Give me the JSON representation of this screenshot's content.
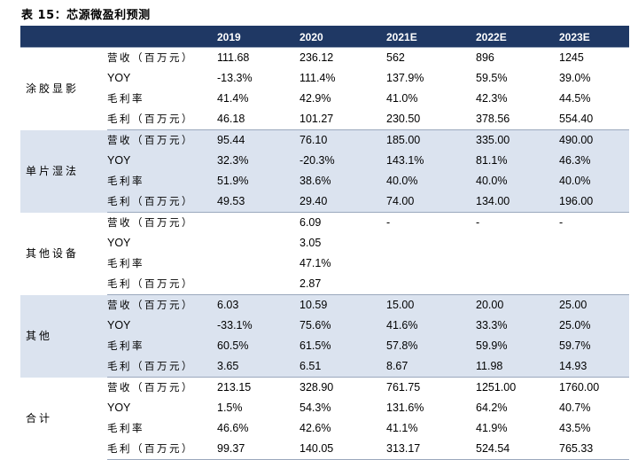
{
  "title": "表 15：芯源微盈利预测",
  "columns": [
    "",
    "",
    "2019",
    "2020",
    "2021E",
    "2022E",
    "2023E"
  ],
  "groups": [
    {
      "segment": "涂胶显影",
      "rows": [
        {
          "metric": "营收（百万元）",
          "values": [
            "111.68",
            "236.12",
            "562",
            "896",
            "1245"
          ]
        },
        {
          "metric": "YOY",
          "values": [
            "-13.3%",
            "111.4%",
            "137.9%",
            "59.5%",
            "39.0%"
          ]
        },
        {
          "metric": "毛利率",
          "values": [
            "41.4%",
            "42.9%",
            "41.0%",
            "42.3%",
            "44.5%"
          ]
        },
        {
          "metric": "毛利（百万元）",
          "values": [
            "46.18",
            "101.27",
            "230.50",
            "378.56",
            "554.40"
          ]
        }
      ]
    },
    {
      "segment": "单片湿法",
      "rows": [
        {
          "metric": "营收（百万元）",
          "values": [
            "95.44",
            "76.10",
            "185.00",
            "335.00",
            "490.00"
          ]
        },
        {
          "metric": "YOY",
          "values": [
            "32.3%",
            "-20.3%",
            "143.1%",
            "81.1%",
            "46.3%"
          ]
        },
        {
          "metric": "毛利率",
          "values": [
            "51.9%",
            "38.6%",
            "40.0%",
            "40.0%",
            "40.0%"
          ]
        },
        {
          "metric": "毛利（百万元）",
          "values": [
            "49.53",
            "29.40",
            "74.00",
            "134.00",
            "196.00"
          ]
        }
      ]
    },
    {
      "segment": "其他设备",
      "rows": [
        {
          "metric": "营收（百万元）",
          "values": [
            "",
            "6.09",
            "-",
            "-",
            "-"
          ]
        },
        {
          "metric": "YOY",
          "values": [
            "",
            "3.05",
            "",
            "",
            ""
          ]
        },
        {
          "metric": "毛利率",
          "values": [
            "",
            "47.1%",
            "",
            "",
            ""
          ]
        },
        {
          "metric": "毛利（百万元）",
          "values": [
            "",
            "2.87",
            "",
            "",
            ""
          ]
        }
      ]
    },
    {
      "segment": "其他",
      "rows": [
        {
          "metric": "营收（百万元）",
          "values": [
            "6.03",
            "10.59",
            "15.00",
            "20.00",
            "25.00"
          ]
        },
        {
          "metric": "YOY",
          "values": [
            "-33.1%",
            "75.6%",
            "41.6%",
            "33.3%",
            "25.0%"
          ]
        },
        {
          "metric": "毛利率",
          "values": [
            "60.5%",
            "61.5%",
            "57.8%",
            "59.9%",
            "59.7%"
          ]
        },
        {
          "metric": "毛利（百万元）",
          "values": [
            "3.65",
            "6.51",
            "8.67",
            "11.98",
            "14.93"
          ]
        }
      ]
    },
    {
      "segment": "合计",
      "rows": [
        {
          "metric": "营收（百万元）",
          "values": [
            "213.15",
            "328.90",
            "761.75",
            "1251.00",
            "1760.00"
          ]
        },
        {
          "metric": "YOY",
          "values": [
            "1.5%",
            "54.3%",
            "131.6%",
            "64.2%",
            "40.7%"
          ]
        },
        {
          "metric": "毛利率",
          "values": [
            "46.6%",
            "42.6%",
            "41.1%",
            "41.9%",
            "43.5%"
          ]
        },
        {
          "metric": "毛利（百万元）",
          "values": [
            "99.37",
            "140.05",
            "313.17",
            "524.54",
            "765.33"
          ]
        }
      ]
    }
  ],
  "colors": {
    "header": "#1f3864",
    "band": "#dbe3ef"
  }
}
